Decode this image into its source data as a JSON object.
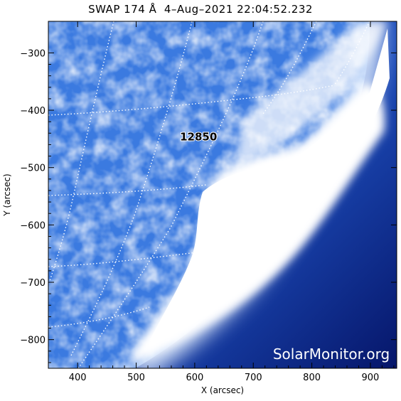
{
  "title": "SWAP 174 Å  4–Aug–2021 22:04:52.232",
  "x_axis": {
    "label": "X (arcsec)",
    "range": [
      350,
      945
    ],
    "ticks": [
      400,
      500,
      600,
      700,
      800,
      900
    ],
    "tick_labels": [
      "400",
      "500",
      "600",
      "700",
      "800",
      "900"
    ]
  },
  "y_axis": {
    "label": "Y (arcsec)",
    "range": [
      -850,
      -245
    ],
    "ticks": [
      -300,
      -400,
      -500,
      -600,
      -700,
      -800
    ],
    "tick_labels": [
      "−300",
      "−400",
      "−500",
      "−600",
      "−700",
      "−800"
    ]
  },
  "active_region": {
    "label": "12850",
    "x": 655,
    "y": -445
  },
  "watermark": "SolarMonitor.org",
  "colors": {
    "disk_dark": "#1a3a9e",
    "disk_mid": "#3d7fe0",
    "disk_light": "#a9cdf7",
    "bright": "#ffffff",
    "offlimb": "#0a1a6e"
  }
}
